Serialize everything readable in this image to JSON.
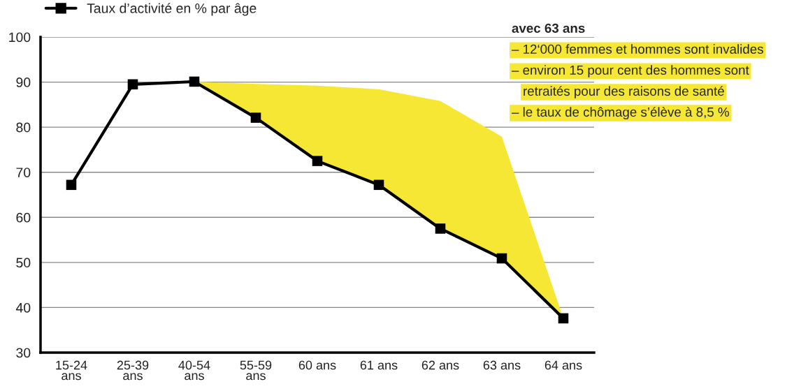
{
  "chart_data": {
    "type": "line",
    "categories": [
      "15-24\nans",
      "25-39\nans",
      "40-54\nans",
      "55-59\nans",
      "60 ans",
      "61 ans",
      "62 ans",
      "63 ans",
      "64 ans"
    ],
    "series": [
      {
        "name": "Taux d’activité en % par âge",
        "color": "#000000",
        "values": [
          67.2,
          89.5,
          90.1,
          82.1,
          72.5,
          67.2,
          57.5,
          50.9,
          37.6
        ]
      },
      {
        "color": "#f5e733",
        "values": [
          null,
          null,
          null,
          null,
          null,
          null,
          null,
          null,
          null
        ],
        "lower": [
          null,
          null,
          90.1,
          82.1,
          72.5,
          67.2,
          57.5,
          50.9,
          37.6
        ],
        "upper": [
          null,
          null,
          90.1,
          89.6,
          89.2,
          88.4,
          85.8,
          77.9,
          37.6
        ]
      }
    ],
    "ylim": [
      30,
      100
    ],
    "yticks": [
      30,
      40,
      50,
      60,
      70,
      80,
      90,
      100
    ],
    "grid": "y",
    "legend": "top left",
    "marker": "square",
    "line_style": "solid",
    "annotations": [
      "avec 63 ans",
      "– 12‘000 femmes et hommes sont invalides",
      "– environ 15 pour cent des hommes sont\nretraités pour des raisons de santé",
      "– le taux de chômage s’élève à 8,5 %"
    ]
  }
}
